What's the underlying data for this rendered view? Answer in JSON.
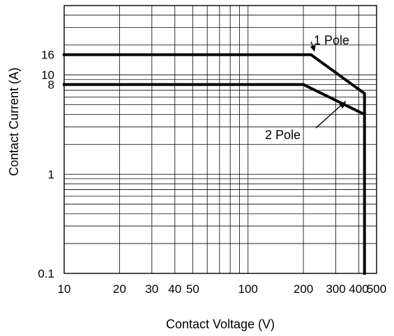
{
  "chart_data": {
    "type": "line",
    "xlabel": "Contact Voltage (V)",
    "ylabel": "Contact Current (A)",
    "xscale": "log",
    "yscale": "log",
    "xlim": [
      10,
      500
    ],
    "ylim": [
      0.1,
      50
    ],
    "grid": true,
    "x_ticks": [
      {
        "value": 10,
        "label": "10"
      },
      {
        "value": 20,
        "label": "20"
      },
      {
        "value": 30,
        "label": "30"
      },
      {
        "value": 40,
        "label": "40"
      },
      {
        "value": 50,
        "label": "50"
      },
      {
        "value": 100,
        "label": "100"
      },
      {
        "value": 200,
        "label": "200"
      },
      {
        "value": 300,
        "label": "300"
      },
      {
        "value": 400,
        "label": "400"
      },
      {
        "value": 500,
        "label": "500"
      }
    ],
    "y_ticks": [
      {
        "value": 0.1,
        "label": "0.1"
      },
      {
        "value": 1,
        "label": "1"
      },
      {
        "value": 8,
        "label": "8"
      },
      {
        "value": 10,
        "label": "10"
      },
      {
        "value": 16,
        "label": "16"
      }
    ],
    "series": [
      {
        "name": "1 Pole",
        "x": [
          10,
          220,
          430,
          430
        ],
        "y": [
          16,
          16,
          6.5,
          0.1
        ]
      },
      {
        "name": "2 Pole",
        "x": [
          10,
          200,
          430
        ],
        "y": [
          8,
          8,
          4
        ]
      }
    ],
    "annotations": [
      {
        "text": "1 Pole",
        "arrow_to": {
          "x": 230,
          "y": 16
        }
      },
      {
        "text": "2 Pole",
        "arrow_to": {
          "x": 340,
          "y": 5.2
        }
      }
    ]
  }
}
